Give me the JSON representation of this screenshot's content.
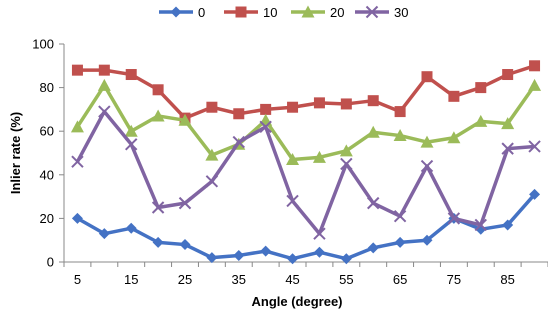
{
  "chart_data": {
    "type": "line",
    "xlabel": "Angle (degree)",
    "ylabel": "Inlier rate (%)",
    "ylim": [
      0,
      100
    ],
    "yticks": [
      0,
      20,
      40,
      60,
      80,
      100
    ],
    "x": [
      5,
      10,
      15,
      20,
      25,
      30,
      35,
      40,
      45,
      50,
      55,
      60,
      65,
      70,
      75,
      80,
      85,
      90
    ],
    "xtick_labels": [
      "5",
      "15",
      "25",
      "35",
      "45",
      "55",
      "65",
      "75",
      "85"
    ],
    "xtick_values": [
      5,
      15,
      25,
      35,
      45,
      55,
      65,
      75,
      85
    ],
    "grid": false,
    "legend_position": "top",
    "series": [
      {
        "name": "0",
        "color": "#4472C4",
        "marker": "diamond",
        "values": [
          20,
          13,
          15.5,
          9,
          8,
          2,
          3,
          5,
          1.5,
          4.5,
          1.5,
          6.5,
          9,
          10,
          20,
          15,
          17,
          31
        ]
      },
      {
        "name": "10",
        "color": "#C0504D",
        "marker": "square",
        "values": [
          88,
          88,
          86,
          79,
          66,
          71,
          68,
          70,
          71,
          73,
          72.5,
          74,
          69,
          85,
          76,
          80,
          86,
          90
        ]
      },
      {
        "name": "20",
        "color": "#9BBB59",
        "marker": "triangle",
        "values": [
          62,
          81,
          60,
          67,
          65,
          49,
          54,
          65,
          47,
          48,
          51,
          59.5,
          58,
          55,
          57,
          64.5,
          63.5,
          81
        ]
      },
      {
        "name": "30",
        "color": "#8064A2",
        "marker": "x",
        "values": [
          46,
          69,
          54,
          25,
          27,
          37,
          55,
          62,
          28,
          13,
          45,
          27,
          21,
          44,
          20,
          17,
          52,
          53
        ]
      }
    ]
  }
}
